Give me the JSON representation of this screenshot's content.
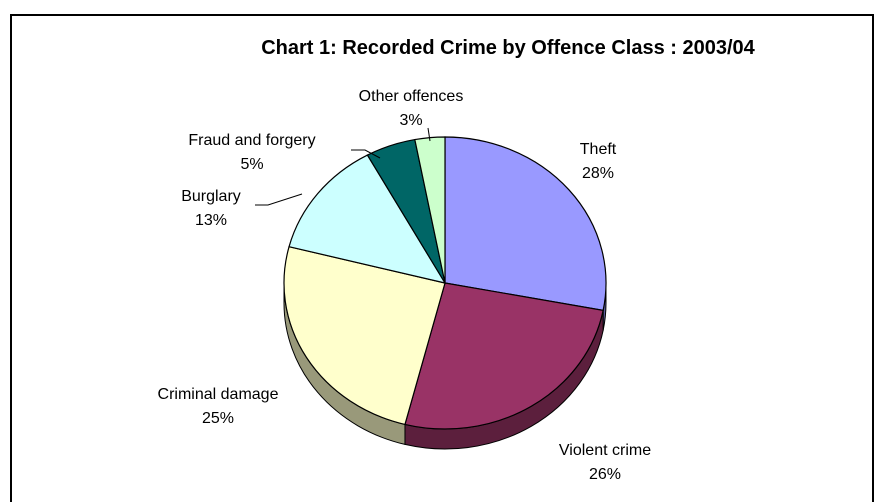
{
  "chart_data": {
    "type": "pie",
    "title": "Chart 1: Recorded Crime by Offence Class : 2003/04",
    "categories": [
      "Theft",
      "Violent crime",
      "Criminal damage",
      "Burglary",
      "Fraud and forgery",
      "Other offences"
    ],
    "values": [
      28,
      26,
      25,
      13,
      5,
      3
    ],
    "value_labels": [
      "28%",
      "26%",
      "25%",
      "13%",
      "5%",
      "3%"
    ],
    "unit": "%",
    "colors": [
      "#9999ff",
      "#993366",
      "#ffffcc",
      "#ccffff",
      "#006666",
      "#ccffcc"
    ],
    "shadow_colors": [
      "#5c5c99",
      "#5c1f3d",
      "#99997a",
      "#7a9999",
      "#003d3d",
      "#7a997a"
    ],
    "style": "3d-pie",
    "legend": "none"
  }
}
